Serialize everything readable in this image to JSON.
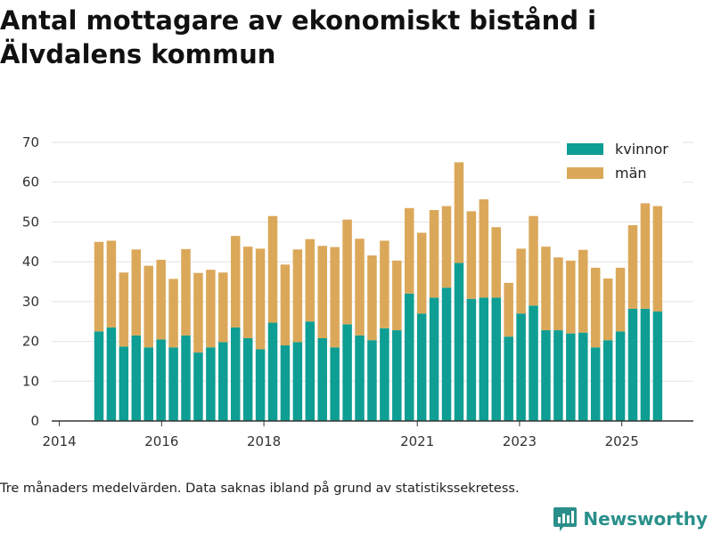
{
  "title": "Antal mottagare av ekonomiskt bistånd i Älvdalens kommun",
  "footnote": "Tre månaders medelvärden. Data saknas ibland på grund av statistikssekretess.",
  "brand": {
    "name": "Newsworthy",
    "logo_icon": "bar-chart-logo-icon"
  },
  "colors": {
    "kvinnor": "#0e9e93",
    "man": "#dba85a",
    "grid": "#e2e2e2",
    "axis": "#333333"
  },
  "chart_data": {
    "type": "bar",
    "stacked": true,
    "title": "Antal mottagare av ekonomiskt bistånd i Älvdalens kommun",
    "xlabel": "",
    "ylabel": "",
    "ylim": [
      0,
      70
    ],
    "yticks": [
      0,
      10,
      20,
      30,
      40,
      50,
      60,
      70
    ],
    "xlim": [
      2013.85,
      2026.4
    ],
    "xticks": [
      {
        "label": "2014",
        "value": 2014.0
      },
      {
        "label": "2016",
        "value": 2016.0
      },
      {
        "label": "2018",
        "value": 2018.0
      },
      {
        "label": "2021",
        "value": 2021.0
      },
      {
        "label": "2023",
        "value": 2023.0
      },
      {
        "label": "2025",
        "value": 2025.0
      }
    ],
    "legend": {
      "position": "top-right",
      "entries": [
        "kvinnor",
        "män"
      ]
    },
    "series": [
      {
        "name": "kvinnor",
        "values": [
          22.5,
          23.5,
          18.7,
          21.5,
          18.5,
          20.5,
          18.5,
          21.5,
          17.2,
          18.5,
          19.8,
          23.5,
          20.8,
          18.0,
          24.7,
          19.0,
          19.8,
          25.0,
          20.8,
          18.5,
          24.3,
          21.5,
          20.3,
          23.3,
          22.8,
          32.0,
          27.0,
          31.0,
          33.5,
          39.7,
          30.7,
          31.0,
          31.0,
          21.2,
          27.0,
          29.0,
          22.8,
          22.8,
          22.0,
          22.2,
          18.5,
          20.3,
          22.5,
          28.2,
          28.2,
          27.5
        ]
      },
      {
        "name": "män",
        "values": [
          22.5,
          21.8,
          18.6,
          21.6,
          20.5,
          20.0,
          17.2,
          21.7,
          20.0,
          19.5,
          17.5,
          23.0,
          23.0,
          25.3,
          26.8,
          20.3,
          23.3,
          20.7,
          23.2,
          25.2,
          26.3,
          24.3,
          21.3,
          22.0,
          17.5,
          21.5,
          20.3,
          22.0,
          20.5,
          25.3,
          22.0,
          24.7,
          17.7,
          13.5,
          16.3,
          22.5,
          21.0,
          18.3,
          18.3,
          20.8,
          20.0,
          15.5,
          16.0,
          21.0,
          26.5,
          26.5
        ]
      }
    ]
  }
}
